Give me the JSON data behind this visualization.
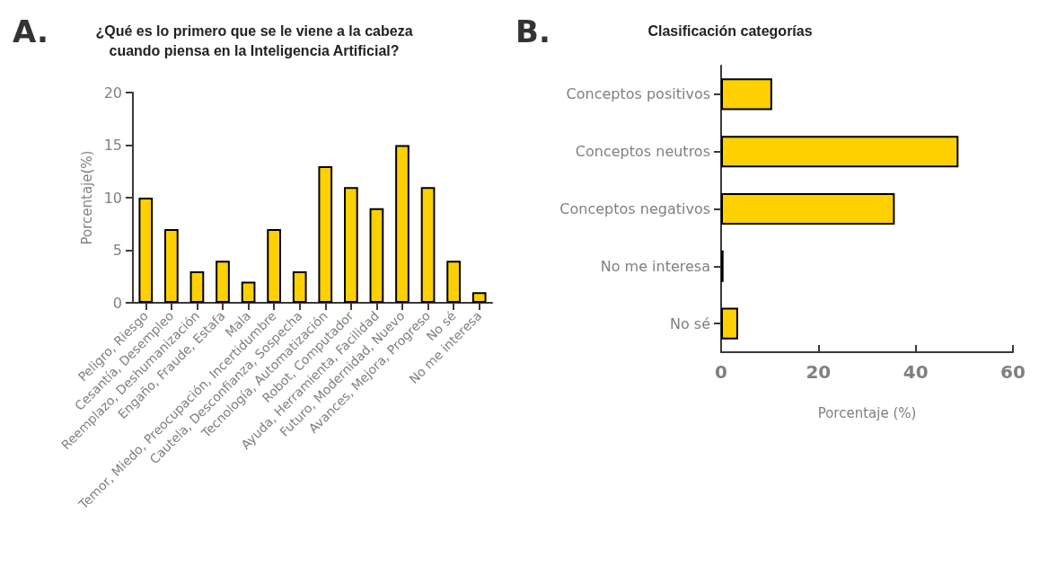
{
  "chart_data": [
    {
      "type": "bar",
      "title": "¿Qué es lo primero que se le viene a la cabeza\ncuando piensa en la Inteligencia Artificial?",
      "annotations": [
        "A."
      ],
      "ylabel": "Porcentaje(%)",
      "categories": [
        "Peligro, Riesgo",
        "Cesantía, Desempleo",
        "Reemplazo, Deshumanización",
        "Engaño, Fraude, Estafa",
        "Mala",
        "Temor, Miedo, Preocupación, Incertidumbre",
        "Cautela, Desconfianza, Sospecha",
        "Tecnología, Automatización",
        "Robot, Computador",
        "Ayuda, Herramienta, Facilidad",
        "Futuro, Modernidad, Nuevo",
        "Avances, Mejora, Progreso",
        "No sé",
        "No me interesa"
      ],
      "values": [
        10,
        7,
        3,
        4,
        2,
        7,
        3,
        13,
        11,
        9,
        15,
        11,
        4,
        1
      ],
      "color": "#ffd000",
      "ylim": [
        0,
        20
      ],
      "yticks": [
        0,
        5,
        10,
        15,
        20
      ]
    },
    {
      "type": "bar",
      "orientation": "horizontal",
      "title": "Clasificación categorías",
      "annotations": [
        "B."
      ],
      "xlabel": "Porcentaje (%)",
      "categories": [
        "Conceptos positivos",
        "Conceptos neutros",
        "Conceptos negativos",
        "No me interesa",
        "No sé"
      ],
      "values": [
        10.5,
        48.8,
        35.7,
        0.5,
        3.5
      ],
      "color": "#ffd000",
      "xlim": [
        0,
        60
      ],
      "xticks": [
        0,
        20,
        40,
        60
      ]
    }
  ]
}
